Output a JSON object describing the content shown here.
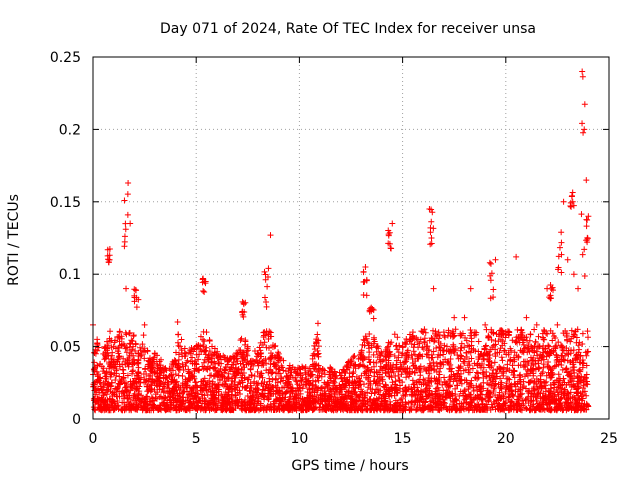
{
  "chart_data": {
    "type": "scatter",
    "title": "Day 071 of 2024, Rate Of TEC Index for receiver unsa",
    "xlabel": "GPS time / hours",
    "ylabel": "ROTI / TECUs",
    "xlim": [
      0,
      25
    ],
    "ylim": [
      0,
      0.25
    ],
    "x_ticks": [
      "0",
      "5",
      "10",
      "15",
      "20",
      "25"
    ],
    "y_ticks": [
      "0",
      "0.05",
      "0.1",
      "0.15",
      "0.2",
      "0.25"
    ],
    "grid": true,
    "marker": "+",
    "color": "#ff0000",
    "series": [
      {
        "name": "ROTI",
        "points_summary": "dense band of values 0.005–0.05 TECU across 0–24 h",
        "x": [
          0.0,
          0.2,
          0.5,
          0.8,
          1.0,
          1.3,
          1.6,
          1.7,
          1.8,
          2.0,
          2.2,
          2.5,
          2.8,
          3.0,
          3.5,
          4.0,
          4.1,
          4.5,
          5.0,
          5.4,
          5.5,
          6.0,
          6.5,
          7.0,
          7.3,
          7.5,
          8.0,
          8.3,
          8.5,
          8.6,
          9.0,
          9.5,
          10.0,
          10.5,
          10.9,
          11.0,
          11.5,
          12.0,
          12.5,
          13.0,
          13.2,
          13.4,
          14.0,
          14.3,
          14.5,
          15.0,
          15.5,
          16.0,
          16.3,
          16.4,
          16.5,
          17.0,
          17.5,
          18.0,
          18.3,
          18.5,
          19.0,
          19.3,
          19.5,
          20.0,
          20.5,
          21.0,
          21.5,
          22.0,
          22.5,
          22.8,
          23.0,
          23.3,
          23.5,
          23.7,
          23.8,
          23.9,
          24.0
        ],
        "y": [
          0.065,
          0.055,
          0.045,
          0.11,
          0.05,
          0.06,
          0.09,
          0.163,
          0.135,
          0.085,
          0.045,
          0.065,
          0.04,
          0.045,
          0.035,
          0.04,
          0.067,
          0.045,
          0.05,
          0.095,
          0.06,
          0.045,
          0.04,
          0.045,
          0.08,
          0.05,
          0.045,
          0.06,
          0.104,
          0.127,
          0.045,
          0.035,
          0.035,
          0.035,
          0.066,
          0.035,
          0.035,
          0.03,
          0.04,
          0.045,
          0.105,
          0.075,
          0.045,
          0.05,
          0.135,
          0.05,
          0.06,
          0.06,
          0.145,
          0.125,
          0.09,
          0.06,
          0.07,
          0.07,
          0.09,
          0.06,
          0.065,
          0.06,
          0.11,
          0.06,
          0.112,
          0.07,
          0.065,
          0.09,
          0.065,
          0.15,
          0.11,
          0.1,
          0.09,
          0.24,
          0.2,
          0.165,
          0.14
        ]
      }
    ]
  }
}
